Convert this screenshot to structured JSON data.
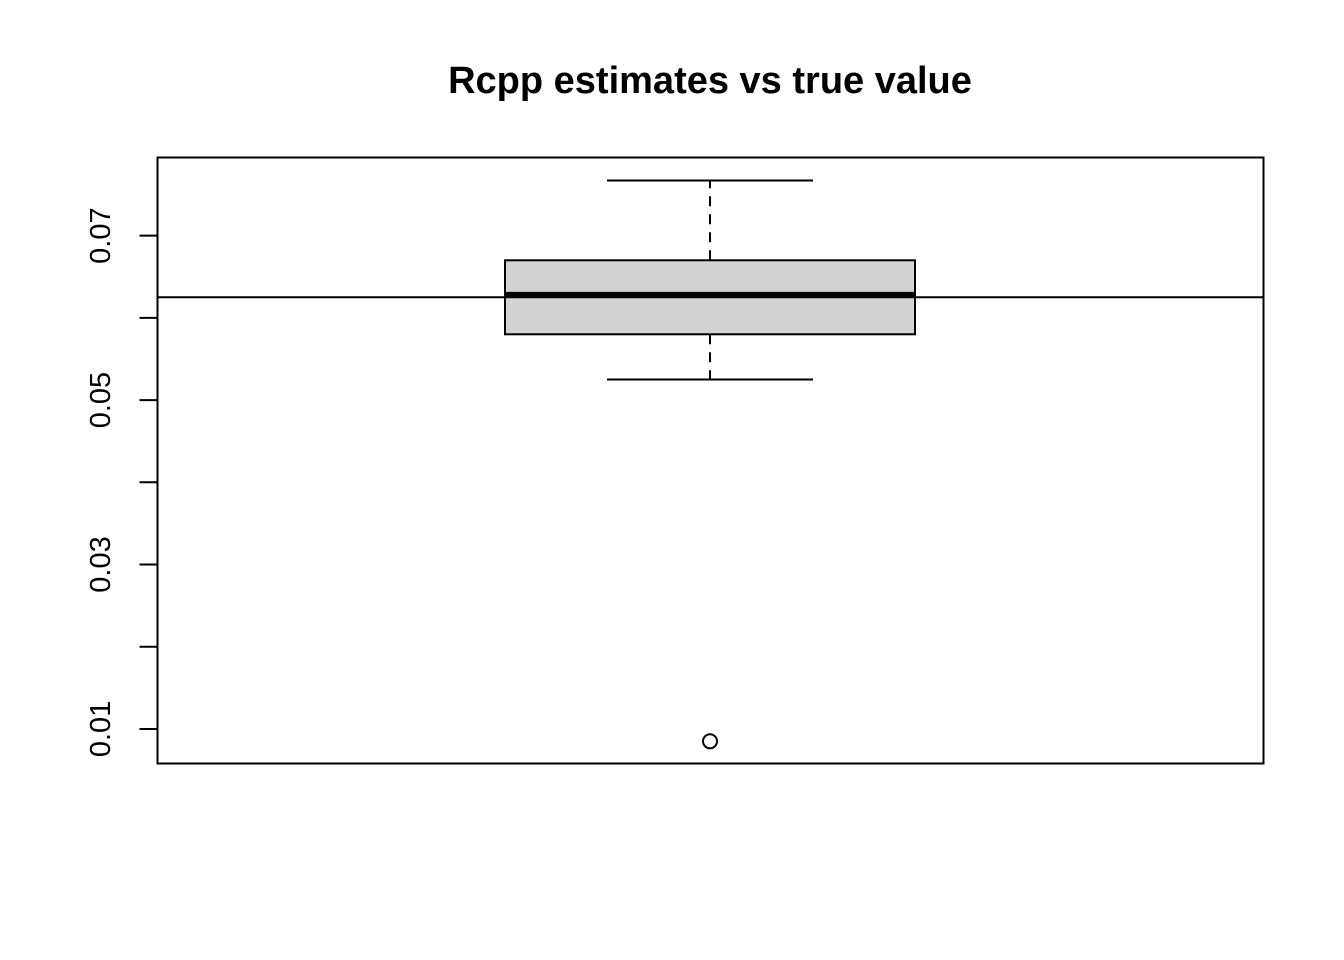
{
  "chart_data": {
    "type": "boxplot",
    "title": "Rcpp estimates vs true value",
    "xlabel": "",
    "ylabel": "",
    "ylim": [
      0.0058,
      0.0795
    ],
    "y_ticks": [
      0.01,
      0.02,
      0.03,
      0.04,
      0.05,
      0.06,
      0.07
    ],
    "y_tick_labels": [
      "0.01",
      "",
      "0.03",
      "",
      "0.05",
      "",
      "0.07"
    ],
    "box": {
      "whisker_low": 0.0525,
      "q1": 0.058,
      "median": 0.0628,
      "q3": 0.067,
      "whisker_high": 0.0767
    },
    "outliers": [
      0.0085
    ],
    "reference_line": 0.0625,
    "box_fill": "#d3d3d3",
    "line_color": "#000000",
    "grid": false
  }
}
